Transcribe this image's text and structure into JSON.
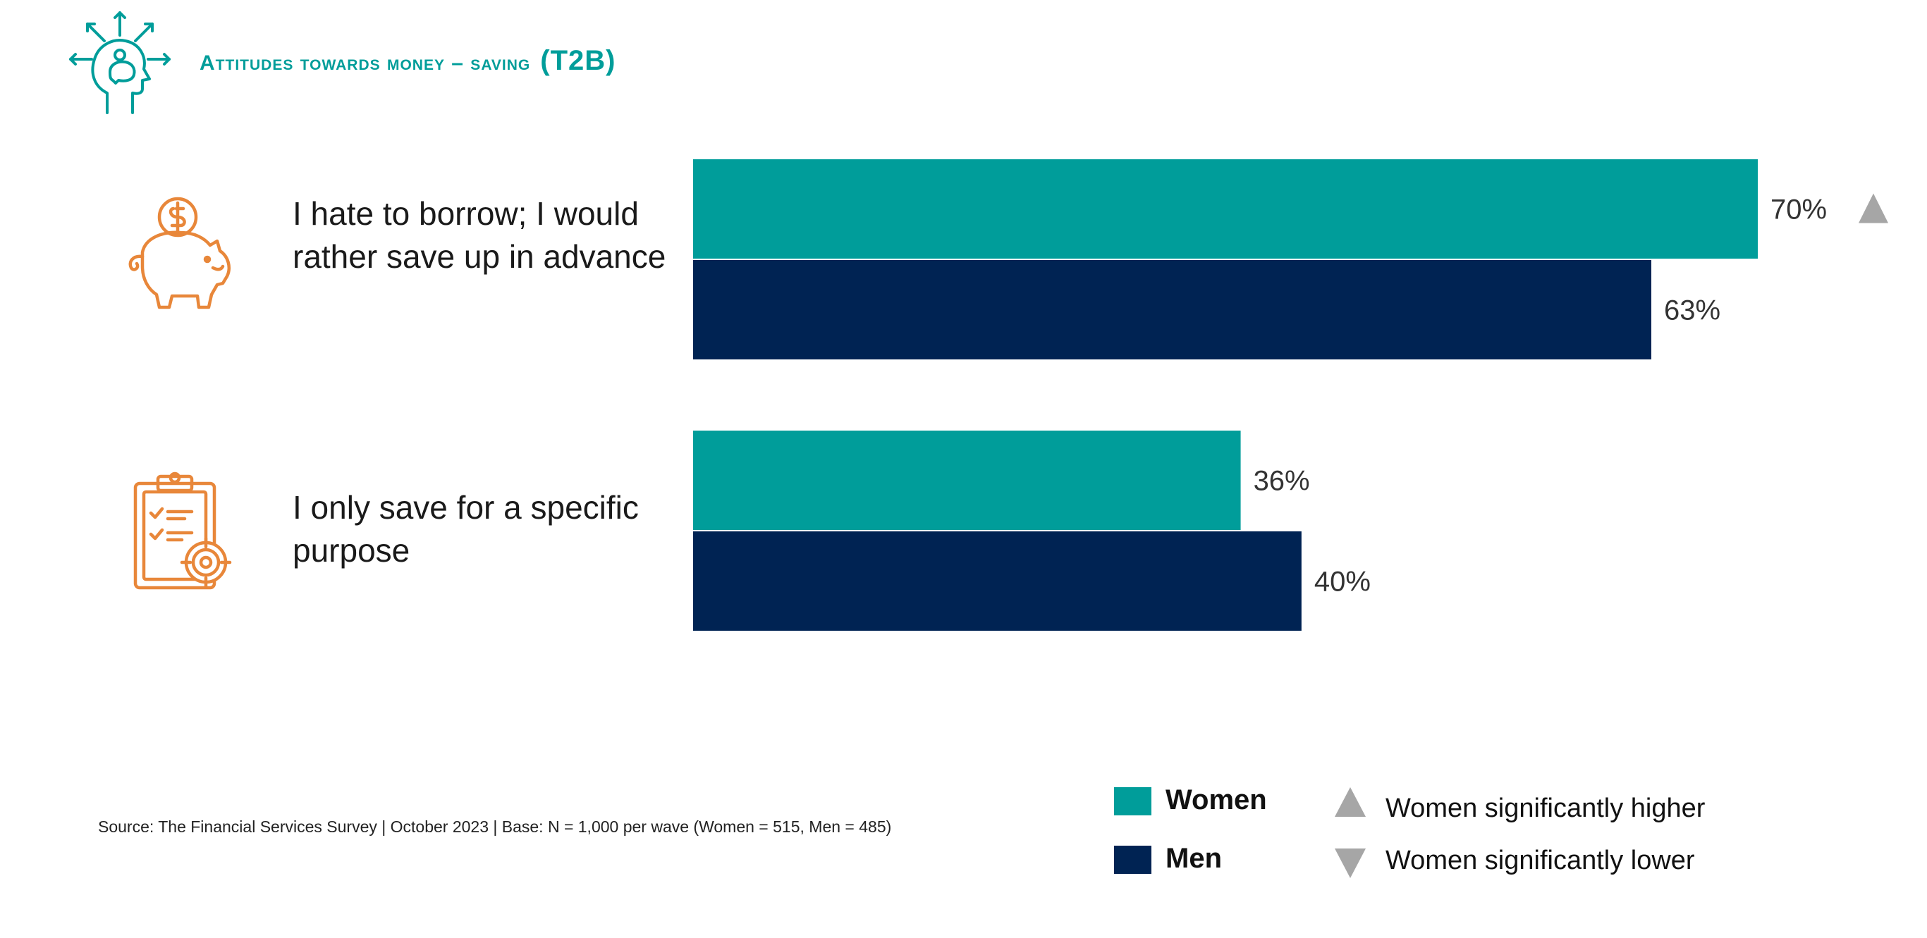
{
  "header": {
    "title": "Attitudes towards money – saving",
    "title_code": "(T2B)",
    "icon": "head-piggy-bank-icon"
  },
  "colors": {
    "women": "#009d9a",
    "men": "#002353",
    "icon_orange": "#e8873a",
    "header_teal": "#009d9a",
    "sig_marker": "#a6a6a6",
    "value_label": "#333333"
  },
  "chart_data": {
    "type": "bar",
    "orientation": "horizontal",
    "categories": [
      "I hate to borrow; I would rather save up in advance",
      "I only save for a specific purpose"
    ],
    "category_icons": [
      "piggy-bank-icon",
      "clipboard-target-icon"
    ],
    "series": [
      {
        "name": "Women",
        "values": [
          70,
          36
        ],
        "labels": [
          "70%",
          "36%"
        ]
      },
      {
        "name": "Men",
        "values": [
          63,
          40
        ],
        "labels": [
          "63%",
          "40%"
        ]
      }
    ],
    "significance": [
      {
        "category_index": 0,
        "series": "Women",
        "marker": "up"
      }
    ],
    "xlim": [
      0,
      100
    ],
    "unit": "%",
    "grid": false,
    "legend_position": "bottom-right"
  },
  "legend": {
    "women": "Women",
    "men": "Men",
    "sig_higher": "Women significantly higher",
    "sig_lower": "Women significantly lower"
  },
  "source": "Source: The Financial Services Survey | October 2023 | Base: N = 1,000 per wave (Women = 515, Men = 485)"
}
